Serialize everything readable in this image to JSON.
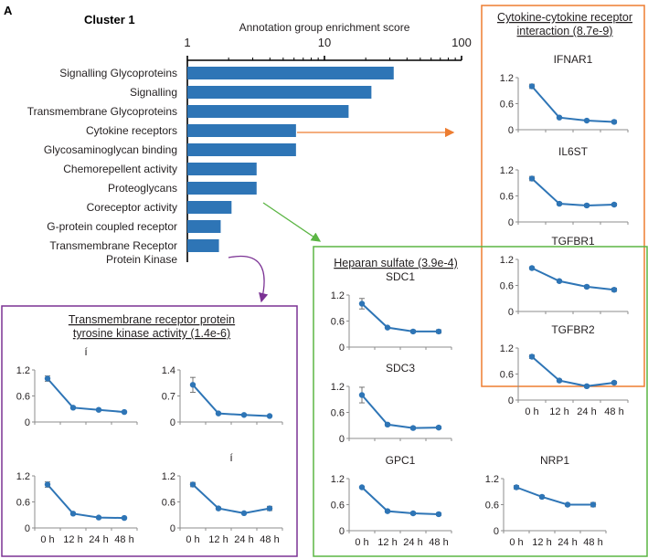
{
  "panel_label": "A",
  "cluster_title": "Cluster 1",
  "colors": {
    "bar": "#2e75b6",
    "line": "#2e75b6",
    "axis": "#8c8c8c",
    "text": "#231f20",
    "orange": "#ed7d31",
    "green": "#5bb544",
    "purple": "#7b3294"
  },
  "chart_data": [
    {
      "id": "enrichment",
      "type": "bar",
      "orientation": "horizontal",
      "title": "Annotation group enrichment score",
      "xscale": "log",
      "xlim": [
        1,
        100
      ],
      "xticks": [
        "1",
        "10",
        "100"
      ],
      "categories": [
        [
          "Signalling Glycoproteins"
        ],
        [
          "Signalling"
        ],
        [
          "Transmembrane Glycoproteins"
        ],
        [
          "Cytokine receptors"
        ],
        [
          "Glycosaminoglycan binding"
        ],
        [
          "Chemorepellent activity"
        ],
        [
          "Proteoglycans"
        ],
        [
          "Coreceptor activity"
        ],
        [
          "G-protein coupled receptor"
        ],
        [
          "Transmembrane Receptor",
          "Protein Kinase"
        ]
      ],
      "values": [
        32,
        22,
        15,
        6.2,
        6.2,
        3.2,
        3.2,
        2.1,
        1.75,
        1.7
      ]
    },
    {
      "id": "cytokine",
      "type": "line",
      "group_title": [
        "Cytokine-cytokine receptor",
        "interaction (8.7e-9)"
      ],
      "x": [
        "0 h",
        "12 h",
        "24 h",
        "48 h"
      ],
      "plots": [
        {
          "title": "IFNAR1",
          "ylim": [
            0,
            1.2
          ],
          "yticks": [
            "0",
            "0.6",
            "1.2"
          ],
          "values": [
            1.0,
            0.28,
            0.21,
            0.18
          ],
          "errors": [
            0.05,
            0.02,
            0.02,
            0.03
          ],
          "show_x": false
        },
        {
          "title": "IL6ST",
          "ylim": [
            0,
            1.2
          ],
          "yticks": [
            "0",
            "0.6",
            "1.2"
          ],
          "values": [
            1.0,
            0.42,
            0.38,
            0.4
          ],
          "errors": [
            0.05,
            0.03,
            0.03,
            0.03
          ],
          "show_x": false
        },
        {
          "title": "TGFBR1",
          "ylim": [
            0,
            1.2
          ],
          "yticks": [
            "0",
            "0.6",
            "1.2"
          ],
          "values": [
            1.0,
            0.7,
            0.57,
            0.5
          ],
          "errors": [
            0.03,
            0.03,
            0.03,
            0.04
          ],
          "show_x": false
        },
        {
          "title": "TGFBR2",
          "ylim": [
            0,
            1.2
          ],
          "yticks": [
            "0",
            "0.6",
            "1.2"
          ],
          "values": [
            1.0,
            0.45,
            0.32,
            0.4
          ],
          "errors": [
            0.04,
            0.03,
            0.03,
            0.03
          ],
          "show_x": true
        }
      ]
    },
    {
      "id": "heparan",
      "type": "line",
      "group_title": [
        "Heparan sulfate (3.9e-4)"
      ],
      "x": [
        "0 h",
        "12 h",
        "24 h",
        "48 h"
      ],
      "plots": [
        {
          "title": "SDC1",
          "ylim": [
            0,
            1.2
          ],
          "yticks": [
            "0",
            "0.6",
            "1.2"
          ],
          "values": [
            1.0,
            0.45,
            0.36,
            0.36
          ],
          "errors": [
            0.12,
            0.02,
            0.03,
            0.04
          ],
          "show_x": false
        },
        {
          "title": "SDC3",
          "ylim": [
            0,
            1.2
          ],
          "yticks": [
            "0",
            "0.6",
            "1.2"
          ],
          "values": [
            1.0,
            0.32,
            0.24,
            0.25
          ],
          "errors": [
            0.18,
            0.03,
            0.03,
            0.03
          ],
          "show_x": false
        },
        {
          "title": "GPC1",
          "ylim": [
            0,
            1.2
          ],
          "yticks": [
            "0",
            "0.6",
            "1.2"
          ],
          "values": [
            1.0,
            0.45,
            0.4,
            0.38
          ],
          "errors": [
            0.02,
            0.03,
            0.03,
            0.03
          ],
          "show_x": true
        },
        {
          "title": "NRP1",
          "ylim": [
            0,
            1.2
          ],
          "yticks": [
            "0",
            "0.6",
            "1.2"
          ],
          "values": [
            1.0,
            0.78,
            0.6,
            0.6
          ],
          "errors": [
            0.04,
            0.03,
            0.03,
            0.05
          ],
          "show_x": true
        }
      ]
    },
    {
      "id": "tyrosine",
      "type": "line",
      "group_title": [
        "Transmembrane receptor protein",
        "tyrosine kinase activity (1.4e-6)"
      ],
      "x": [
        "0 h",
        "12 h",
        "24 h",
        "48 h"
      ],
      "plots": [
        {
          "title": "í",
          "ylim": [
            0,
            1.2
          ],
          "yticks": [
            "0",
            "0.6",
            "1.2"
          ],
          "values": [
            1.0,
            0.33,
            0.28,
            0.23
          ],
          "errors": [
            0.06,
            0.02,
            0.02,
            0.02
          ],
          "show_x": false
        },
        {
          "title": "",
          "ylim": [
            0,
            1.4
          ],
          "yticks": [
            "0",
            "0.7",
            "1.4"
          ],
          "values": [
            1.0,
            0.23,
            0.19,
            0.16
          ],
          "errors": [
            0.2,
            0.02,
            0.02,
            0.02
          ],
          "show_x": false
        },
        {
          "title": "",
          "ylim": [
            0,
            1.2
          ],
          "yticks": [
            "0",
            "0.6",
            "1.2"
          ],
          "values": [
            1.0,
            0.33,
            0.24,
            0.23
          ],
          "errors": [
            0.06,
            0.02,
            0.02,
            0.02
          ],
          "show_x": true
        },
        {
          "title": "í",
          "ylim": [
            0,
            1.2
          ],
          "yticks": [
            "0",
            "0.6",
            "1.2"
          ],
          "values": [
            1.0,
            0.45,
            0.34,
            0.45
          ],
          "errors": [
            0.05,
            0.03,
            0.02,
            0.05
          ],
          "show_x": true
        }
      ]
    }
  ]
}
